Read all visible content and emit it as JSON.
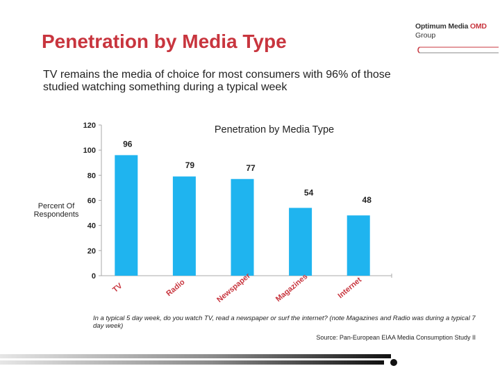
{
  "slide": {
    "title": "Penetration by Media Type",
    "subtitle": "TV remains the media of choice for most consumers with 96% of those studied watching something during a typical week",
    "footnote": "In a typical 5 day week, do you watch TV, read a newspaper or surf the internet? (note Magazines and Radio was during a typical 7 day week)",
    "source": "Source: Pan-European EIAA Media Consumption Study II"
  },
  "brand": {
    "line1_main": "Optimum Media ",
    "line1_accent": "OMD",
    "line2": "Group"
  },
  "colors": {
    "title": "#c8353e",
    "bar": "#1fb4ef",
    "category_label": "#c8353e"
  },
  "chart_data": {
    "type": "bar",
    "title": "Penetration by Media Type",
    "ylabel": "Percent Of Respondents",
    "categories": [
      "TV",
      "Radio",
      "Newspaper",
      "Magazines",
      "Internet"
    ],
    "values": [
      96,
      79,
      77,
      54,
      48
    ],
    "ylim": [
      0,
      120
    ],
    "yticks": [
      0,
      20,
      40,
      60,
      80,
      100,
      120
    ],
    "grid": false,
    "legend": "none"
  }
}
